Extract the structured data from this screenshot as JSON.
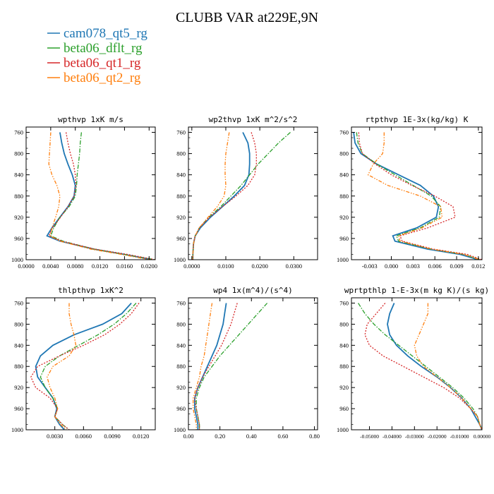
{
  "page_title": "CLUBB VAR at229E,9N",
  "legend": [
    {
      "label": "cam078_qt5_rg",
      "color": "#1f77b4",
      "dash": "solid"
    },
    {
      "label": "beta06_dflt_rg",
      "color": "#2ca02c",
      "dash": "dashdot"
    },
    {
      "label": "beta06_qt1_rg",
      "color": "#d62728",
      "dash": "dotted"
    },
    {
      "label": "beta06_qt2_rg",
      "color": "#ff7f0e",
      "dash": "dashdotdot"
    }
  ],
  "chart_data": [
    {
      "type": "line",
      "title": "wpthvp  1xK m/s",
      "xlim": [
        0,
        0.021
      ],
      "ylim": [
        1000,
        750
      ],
      "y_reversed": true,
      "xticks": [
        0,
        0.004,
        0.008,
        0.012,
        0.016,
        0.02
      ],
      "xticklabels": [
        "0.0000",
        "0.0040",
        "0.0080",
        "0.0120",
        "0.0160",
        "0.0200"
      ],
      "yticks": [
        760,
        800,
        840,
        880,
        920,
        960,
        1000
      ],
      "y": [
        760,
        780,
        800,
        820,
        840,
        860,
        880,
        900,
        920,
        940,
        955,
        965,
        980,
        990,
        1000
      ],
      "series": [
        {
          "name": "cam078_qt5_rg",
          "values": [
            0.0055,
            0.0058,
            0.0062,
            0.0068,
            0.0075,
            0.008,
            0.0078,
            0.0068,
            0.0055,
            0.0042,
            0.0034,
            0.0055,
            0.011,
            0.016,
            0.0205
          ]
        },
        {
          "name": "beta06_dflt_rg",
          "values": [
            0.009,
            0.0088,
            0.0087,
            0.0085,
            0.0083,
            0.0082,
            0.008,
            0.007,
            0.0055,
            0.0045,
            0.004,
            0.006,
            0.011,
            0.016,
            0.021
          ]
        },
        {
          "name": "beta06_qt1_rg",
          "values": [
            0.0065,
            0.0068,
            0.0072,
            0.0077,
            0.008,
            0.0081,
            0.0078,
            0.0068,
            0.0056,
            0.0043,
            0.0037,
            0.0058,
            0.0112,
            0.0165,
            0.021
          ]
        },
        {
          "name": "beta06_qt2_rg",
          "values": [
            0.004,
            0.0039,
            0.0038,
            0.0037,
            0.0042,
            0.005,
            0.0055,
            0.0053,
            0.0048,
            0.0042,
            0.0039,
            0.0055,
            0.0105,
            0.0155,
            0.02
          ]
        }
      ]
    },
    {
      "type": "line",
      "title": "wp2thvp  1xK m^2/s^2",
      "xlim": [
        -0.001,
        0.037
      ],
      "ylim": [
        1000,
        750
      ],
      "y_reversed": true,
      "xticks": [
        0,
        0.01,
        0.02,
        0.03
      ],
      "xticklabels": [
        "0.0000",
        "0.0100",
        "0.0200",
        "0.0300"
      ],
      "yticks": [
        760,
        800,
        840,
        880,
        920,
        960,
        1000
      ],
      "y": [
        760,
        780,
        800,
        820,
        840,
        860,
        880,
        900,
        920,
        940,
        955,
        970,
        990,
        1000
      ],
      "series": [
        {
          "name": "cam078_qt5_rg",
          "values": [
            0.015,
            0.0165,
            0.017,
            0.017,
            0.0168,
            0.0155,
            0.0125,
            0.009,
            0.0055,
            0.0025,
            0.001,
            0.0005,
            0.0003,
            0.0003
          ]
        },
        {
          "name": "beta06_dflt_rg",
          "values": [
            0.029,
            0.0255,
            0.0225,
            0.0195,
            0.017,
            0.0145,
            0.0115,
            0.0085,
            0.005,
            0.0022,
            0.001,
            0.0005,
            0.0003,
            0.0003
          ]
        },
        {
          "name": "beta06_qt1_rg",
          "values": [
            0.0175,
            0.0185,
            0.019,
            0.019,
            0.0185,
            0.0165,
            0.013,
            0.009,
            0.0052,
            0.0022,
            0.001,
            0.0005,
            0.0003,
            0.0003
          ]
        },
        {
          "name": "beta06_qt2_rg",
          "values": [
            0.011,
            0.0105,
            0.01,
            0.0098,
            0.0098,
            0.01,
            0.0095,
            0.0075,
            0.0048,
            0.0022,
            0.001,
            0.0005,
            0.0003,
            0.0003
          ]
        }
      ]
    },
    {
      "type": "line",
      "title": "rtpthvp  1E-3x(kg/kg) K",
      "xlim": [
        -0.0055,
        0.0125
      ],
      "ylim": [
        1000,
        750
      ],
      "y_reversed": true,
      "xticks": [
        -0.003,
        0,
        0.003,
        0.006,
        0.009,
        0.012
      ],
      "xticklabels": [
        "-0.003",
        "0.000",
        "0.003",
        "0.006",
        "0.009",
        "0.012"
      ],
      "yticks": [
        760,
        800,
        840,
        880,
        920,
        960,
        1000
      ],
      "y": [
        760,
        780,
        800,
        820,
        840,
        860,
        880,
        900,
        920,
        940,
        955,
        965,
        980,
        990,
        1000
      ],
      "series": [
        {
          "name": "cam078_qt5_rg",
          "values": [
            -0.0052,
            -0.005,
            -0.0042,
            -0.002,
            0.001,
            0.004,
            0.0058,
            0.0065,
            0.0062,
            0.0035,
            0.0002,
            0.0005,
            0.005,
            0.0095,
            0.012
          ]
        },
        {
          "name": "beta06_dflt_rg",
          "values": [
            -0.0048,
            -0.0046,
            -0.004,
            -0.002,
            0.0005,
            0.003,
            0.0055,
            0.0068,
            0.0066,
            0.004,
            0.0007,
            0.001,
            0.0055,
            0.01,
            0.0122
          ]
        },
        {
          "name": "beta06_qt1_rg",
          "values": [
            -0.0045,
            -0.0044,
            -0.004,
            -0.0022,
            0.0,
            0.0028,
            0.006,
            0.0085,
            0.0088,
            0.005,
            0.0012,
            0.0015,
            0.0058,
            0.0105,
            0.0125
          ]
        },
        {
          "name": "beta06_qt2_rg",
          "values": [
            -0.001,
            -0.001,
            -0.0012,
            -0.0025,
            -0.0032,
            -0.0005,
            0.004,
            0.0068,
            0.007,
            0.0042,
            0.001,
            0.0012,
            0.0055,
            0.01,
            0.0122
          ]
        }
      ]
    },
    {
      "type": "line",
      "title": "thlpthvp  1xK^2",
      "xlim": [
        0,
        0.0135
      ],
      "ylim": [
        1000,
        750
      ],
      "y_reversed": true,
      "xticks": [
        0.003,
        0.006,
        0.009,
        0.012
      ],
      "xticklabels": [
        "0.0030",
        "0.0060",
        "0.0090",
        "0.0120"
      ],
      "yticks": [
        760,
        800,
        840,
        880,
        920,
        960,
        1000
      ],
      "y": [
        760,
        780,
        800,
        820,
        840,
        860,
        880,
        900,
        920,
        940,
        960,
        975,
        990,
        1000
      ],
      "series": [
        {
          "name": "cam078_qt5_rg",
          "values": [
            0.011,
            0.01,
            0.008,
            0.005,
            0.0028,
            0.0015,
            0.001,
            0.0012,
            0.002,
            0.0028,
            0.0032,
            0.003,
            0.0035,
            0.004
          ]
        },
        {
          "name": "beta06_dflt_rg",
          "values": [
            0.0115,
            0.0105,
            0.0092,
            0.0075,
            0.0055,
            0.0035,
            0.002,
            0.0015,
            0.002,
            0.0028,
            0.0033,
            0.003,
            0.0038,
            0.0045
          ]
        },
        {
          "name": "beta06_qt1_rg",
          "values": [
            0.0118,
            0.011,
            0.0098,
            0.0082,
            0.006,
            0.0035,
            0.0012,
            0.0005,
            0.001,
            0.0025,
            0.0033,
            0.003,
            0.0038,
            0.0045
          ]
        },
        {
          "name": "beta06_qt2_rg",
          "values": [
            0.0045,
            0.0045,
            0.0047,
            0.005,
            0.0052,
            0.0045,
            0.0028,
            0.0022,
            0.0025,
            0.003,
            0.0033,
            0.003,
            0.0036,
            0.0042
          ]
        }
      ]
    },
    {
      "type": "line",
      "title": "wp4  1x(m^4)/(s^4)",
      "xlim": [
        0,
        0.82
      ],
      "ylim": [
        1000,
        750
      ],
      "y_reversed": true,
      "xticks": [
        0,
        0.2,
        0.4,
        0.6,
        0.8
      ],
      "xticklabels": [
        "0.00",
        "0.20",
        "0.40",
        "0.60",
        "0.80"
      ],
      "yticks": [
        760,
        800,
        840,
        880,
        920,
        960,
        1000
      ],
      "y": [
        760,
        780,
        800,
        820,
        840,
        860,
        880,
        900,
        920,
        940,
        960,
        975,
        990,
        1000
      ],
      "series": [
        {
          "name": "cam078_qt5_rg",
          "values": [
            0.24,
            0.23,
            0.22,
            0.2,
            0.18,
            0.15,
            0.12,
            0.09,
            0.06,
            0.04,
            0.04,
            0.05,
            0.06,
            0.06
          ]
        },
        {
          "name": "beta06_dflt_rg",
          "values": [
            0.5,
            0.44,
            0.38,
            0.32,
            0.26,
            0.2,
            0.15,
            0.1,
            0.07,
            0.05,
            0.05,
            0.06,
            0.07,
            0.07
          ]
        },
        {
          "name": "beta06_qt1_rg",
          "values": [
            0.31,
            0.29,
            0.27,
            0.24,
            0.21,
            0.17,
            0.13,
            0.09,
            0.06,
            0.04,
            0.05,
            0.06,
            0.07,
            0.07
          ]
        },
        {
          "name": "beta06_qt2_rg",
          "values": [
            0.15,
            0.14,
            0.13,
            0.12,
            0.11,
            0.1,
            0.08,
            0.07,
            0.05,
            0.03,
            0.03,
            0.04,
            0.05,
            0.05
          ]
        }
      ]
    },
    {
      "type": "line",
      "title": "wprtpthlp  1-E-3x(m kg K)/(s kg)",
      "xlim": [
        -0.058,
        0
      ],
      "ylim": [
        1000,
        750
      ],
      "y_reversed": true,
      "xticks": [
        -0.05,
        -0.04,
        -0.03,
        -0.02,
        -0.01,
        0
      ],
      "xticklabels": [
        "-0.05000",
        "-0.04000",
        "-0.03000",
        "-0.02000",
        "-0.01000",
        "0.00000"
      ],
      "yticks": [
        760,
        800,
        840,
        880,
        920,
        960,
        1000
      ],
      "y": [
        760,
        780,
        800,
        820,
        840,
        860,
        880,
        900,
        920,
        940,
        960,
        975,
        990,
        1000
      ],
      "series": [
        {
          "name": "cam078_qt5_rg",
          "values": [
            -0.039,
            -0.041,
            -0.042,
            -0.041,
            -0.038,
            -0.033,
            -0.027,
            -0.02,
            -0.014,
            -0.009,
            -0.005,
            -0.003,
            -0.001,
            0.0
          ]
        },
        {
          "name": "beta06_dflt_rg",
          "values": [
            -0.055,
            -0.052,
            -0.048,
            -0.043,
            -0.037,
            -0.031,
            -0.025,
            -0.019,
            -0.013,
            -0.008,
            -0.004,
            -0.002,
            -0.001,
            0.0
          ]
        },
        {
          "name": "beta06_qt1_rg",
          "values": [
            -0.043,
            -0.047,
            -0.051,
            -0.052,
            -0.05,
            -0.044,
            -0.035,
            -0.026,
            -0.017,
            -0.01,
            -0.005,
            -0.002,
            -0.001,
            0.0
          ]
        },
        {
          "name": "beta06_qt2_rg",
          "values": [
            -0.024,
            -0.024,
            -0.026,
            -0.028,
            -0.03,
            -0.029,
            -0.026,
            -0.02,
            -0.014,
            -0.009,
            -0.005,
            -0.002,
            -0.001,
            0.0
          ]
        }
      ]
    }
  ]
}
